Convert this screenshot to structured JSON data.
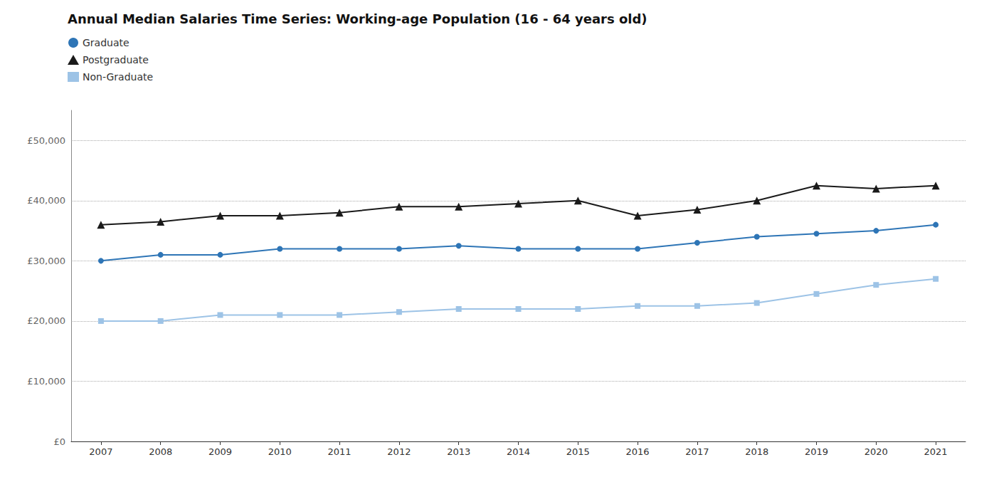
{
  "chart_data": {
    "type": "line",
    "title": "Annual Median Salaries Time Series: Working-age Population (16 - 64 years old)",
    "categories": [
      "2007",
      "2008",
      "2009",
      "2010",
      "2011",
      "2012",
      "2013",
      "2014",
      "2015",
      "2016",
      "2017",
      "2018",
      "2019",
      "2020",
      "2021"
    ],
    "series": [
      {
        "name": "Graduate",
        "color": "#2E75B6",
        "marker": "circle",
        "values": [
          30000,
          31000,
          31000,
          32000,
          32000,
          32000,
          32500,
          32000,
          32000,
          32000,
          33000,
          34000,
          34500,
          35000,
          36000
        ]
      },
      {
        "name": "Postgraduate",
        "color": "#1a1a1a",
        "marker": "triangle",
        "values": [
          36000,
          36500,
          37500,
          37500,
          38000,
          39000,
          39000,
          39500,
          40000,
          37500,
          38500,
          40000,
          42500,
          42000,
          42500
        ]
      },
      {
        "name": "Non-Graduate",
        "color": "#9DC3E6",
        "marker": "square",
        "values": [
          20000,
          20000,
          21000,
          21000,
          21000,
          21500,
          22000,
          22000,
          22000,
          22500,
          22500,
          23000,
          24500,
          26000,
          27000
        ]
      }
    ],
    "ylim": [
      0,
      55000
    ],
    "yticks": [
      {
        "value": 0,
        "label": "£0"
      },
      {
        "value": 10000,
        "label": "£10,000"
      },
      {
        "value": 20000,
        "label": "£20,000"
      },
      {
        "value": 30000,
        "label": "£30,000"
      },
      {
        "value": 40000,
        "label": "£40,000"
      },
      {
        "value": 50000,
        "label": "£50,000"
      }
    ],
    "grid": true,
    "legend": "upper left"
  }
}
